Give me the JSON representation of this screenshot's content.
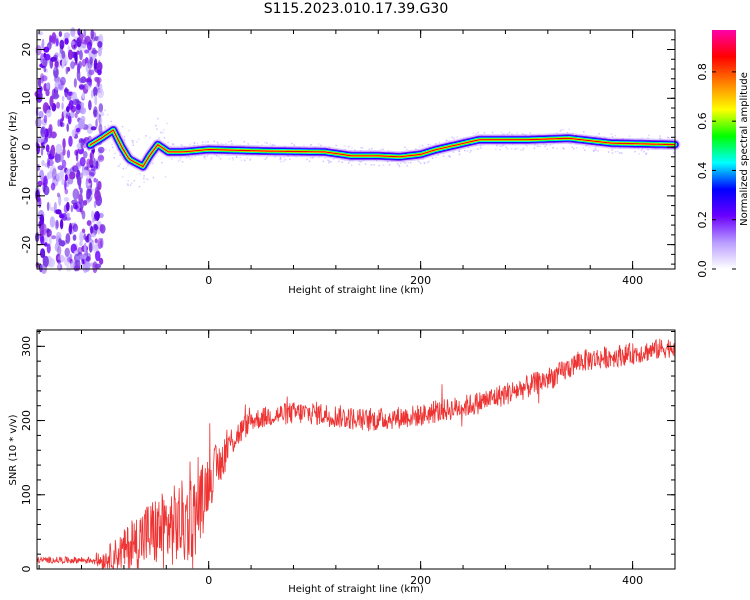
{
  "title": "S115.2023.010.17.39.G30",
  "chart_data": [
    {
      "type": "heatmap",
      "xlabel": "Height of straight line (km)",
      "ylabel": "Frequency (Hz)",
      "xlim": [
        -162,
        440
      ],
      "ylim": [
        -25,
        24
      ],
      "xticks": [
        0,
        200,
        400
      ],
      "yticks": [
        -20,
        -10,
        0,
        10,
        20
      ],
      "colorbar": {
        "label": "Normalized spectral amplitude",
        "ticks": [
          "0.0",
          "0.2",
          "0.4",
          "0.6",
          "0.8"
        ],
        "range": [
          0,
          0.97
        ],
        "colors": [
          "#ffffff",
          "#b99cff",
          "#6a00ff",
          "#0000ff",
          "#00ffff",
          "#00ff00",
          "#ffff00",
          "#ff8000",
          "#ff0000",
          "#ff00aa"
        ]
      },
      "ridge": [
        {
          "x": -115,
          "y": 0
        },
        {
          "x": -100,
          "y": 2
        },
        {
          "x": -90,
          "y": 3.5
        },
        {
          "x": -82,
          "y": 0
        },
        {
          "x": -75,
          "y": -2.5
        },
        {
          "x": -62,
          "y": -4
        },
        {
          "x": -55,
          "y": -1.5
        },
        {
          "x": -48,
          "y": 0.5
        },
        {
          "x": -38,
          "y": -1
        },
        {
          "x": -25,
          "y": -1
        },
        {
          "x": 0,
          "y": -0.5
        },
        {
          "x": 50,
          "y": -0.8
        },
        {
          "x": 110,
          "y": -1
        },
        {
          "x": 135,
          "y": -1.8
        },
        {
          "x": 160,
          "y": -1.8
        },
        {
          "x": 180,
          "y": -2
        },
        {
          "x": 200,
          "y": -1.5
        },
        {
          "x": 215,
          "y": -0.5
        },
        {
          "x": 235,
          "y": 0.5
        },
        {
          "x": 255,
          "y": 1.5
        },
        {
          "x": 300,
          "y": 1.5
        },
        {
          "x": 340,
          "y": 1.8
        },
        {
          "x": 380,
          "y": 0.8
        },
        {
          "x": 440,
          "y": 0.5
        }
      ]
    },
    {
      "type": "line",
      "xlabel": "Height of straight line (km)",
      "ylabel": "SNR (10 * v/v)",
      "xlim": [
        -162,
        440
      ],
      "ylim": [
        0,
        322
      ],
      "xticks": [
        0,
        200,
        400
      ],
      "yticks": [
        0,
        100,
        200,
        300
      ],
      "color": "#ee3333",
      "envelope": [
        {
          "x": -162,
          "y": 12
        },
        {
          "x": -100,
          "y": 12
        },
        {
          "x": -80,
          "y": 25
        },
        {
          "x": -60,
          "y": 45
        },
        {
          "x": -40,
          "y": 55
        },
        {
          "x": -20,
          "y": 65
        },
        {
          "x": -10,
          "y": 80
        },
        {
          "x": 0,
          "y": 120
        },
        {
          "x": 10,
          "y": 140
        },
        {
          "x": 20,
          "y": 170
        },
        {
          "x": 40,
          "y": 200
        },
        {
          "x": 60,
          "y": 207
        },
        {
          "x": 80,
          "y": 210
        },
        {
          "x": 100,
          "y": 210
        },
        {
          "x": 120,
          "y": 206
        },
        {
          "x": 150,
          "y": 200
        },
        {
          "x": 200,
          "y": 207
        },
        {
          "x": 250,
          "y": 222
        },
        {
          "x": 300,
          "y": 245
        },
        {
          "x": 330,
          "y": 262
        },
        {
          "x": 350,
          "y": 280
        },
        {
          "x": 400,
          "y": 290
        },
        {
          "x": 440,
          "y": 300
        }
      ],
      "noise": [
        {
          "x": -162,
          "y": 4
        },
        {
          "x": -110,
          "y": 5
        },
        {
          "x": -90,
          "y": 20
        },
        {
          "x": -60,
          "y": 45
        },
        {
          "x": -20,
          "y": 60
        },
        {
          "x": 0,
          "y": 40
        },
        {
          "x": 20,
          "y": 22
        },
        {
          "x": 40,
          "y": 14
        },
        {
          "x": 100,
          "y": 16
        },
        {
          "x": 200,
          "y": 15
        },
        {
          "x": 300,
          "y": 16
        },
        {
          "x": 440,
          "y": 14
        }
      ]
    }
  ]
}
